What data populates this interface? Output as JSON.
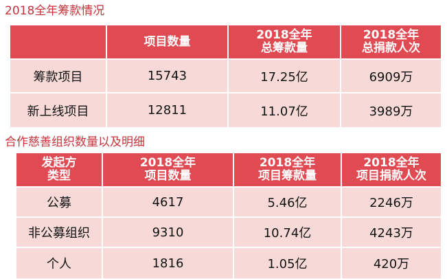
{
  "section1": {
    "title": "2018全年筹款情况",
    "headers": [
      "",
      "项目数量",
      "2018全年\n总筹款量",
      "2018全年\n总捐款人次"
    ],
    "rows": [
      [
        "筹款项目",
        "15743",
        "17.25亿",
        "6909万"
      ],
      [
        "新上线项目",
        "12811",
        "11.07亿",
        "3989万"
      ]
    ]
  },
  "section2": {
    "title": "合作慈善组织数量以及明细",
    "headers": [
      "发起方\n类型",
      "2018全年\n项目数量",
      "2018全年\n项目筹款量",
      "2018全年\n项目捐款人次"
    ],
    "rows": [
      [
        "公募",
        "4617",
        "5.46亿",
        "2246万"
      ],
      [
        "非公募组织",
        "9310",
        "10.74亿",
        "4243万"
      ],
      [
        "个人",
        "1816",
        "1.05亿",
        "420万"
      ]
    ]
  },
  "colors": {
    "title": "#c8323a",
    "header_bg": "#e04a52",
    "cell_bg": "#f7dad8"
  }
}
